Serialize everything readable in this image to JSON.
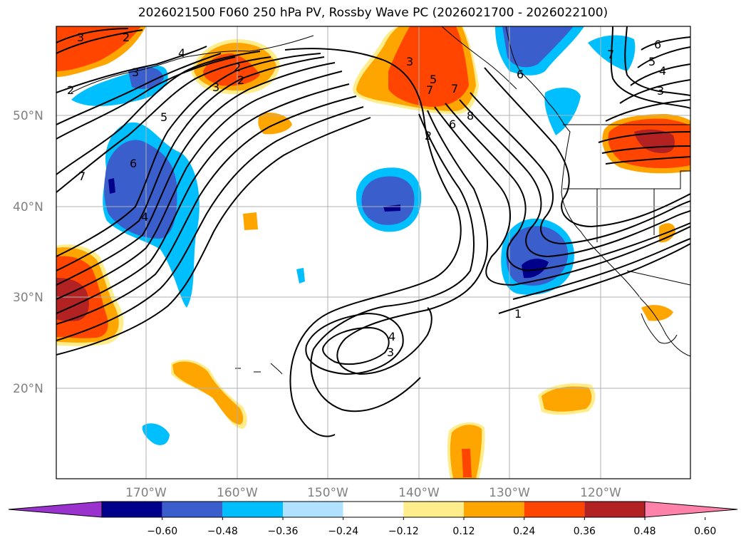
{
  "title": "2026021500 F060 250 hPa PV, Rossby Wave PC (2026021700 - 2026022100)",
  "map": {
    "lat_labels": [
      "50°N",
      "40°N",
      "30°N",
      "20°N"
    ],
    "lon_labels": [
      "170°W",
      "160°W",
      "150°W",
      "140°W",
      "130°W",
      "120°W"
    ],
    "contour_labels": [
      "3",
      "2",
      "2",
      "4",
      "3",
      "5",
      "6",
      "7",
      "4",
      "2",
      "3",
      "2",
      "3",
      "5",
      "7",
      "7",
      "6",
      "8",
      "2",
      "6",
      "5",
      "4",
      "3",
      "6",
      "7",
      "1",
      "3",
      "4"
    ]
  },
  "colorbar": {
    "ticks": [
      "−0.60",
      "−0.48",
      "−0.36",
      "−0.24",
      "−0.12",
      "0.12",
      "0.24",
      "0.36",
      "0.48",
      "0.60"
    ],
    "colors": [
      "#9a32cd",
      "#00008b",
      "#3a5fcd",
      "#00bfff",
      "#b0e2ff",
      "#ffffff",
      "#ffec8b",
      "#ffa500",
      "#ff4500",
      "#b22222",
      "#ff82ab"
    ]
  }
}
